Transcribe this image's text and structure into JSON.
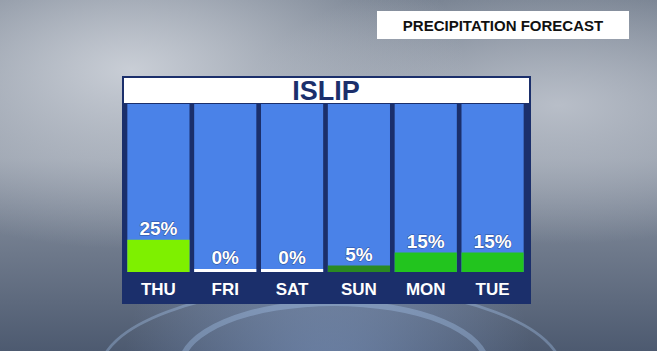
{
  "chart_data": {
    "type": "bar",
    "title": "ISLIP",
    "subtitle": "PRECIPITATION FORECAST",
    "categories": [
      "THU",
      "FRI",
      "SAT",
      "SUN",
      "MON",
      "TUE"
    ],
    "values": [
      25,
      0,
      0,
      5,
      15,
      15
    ],
    "value_labels": [
      "25%",
      "0%",
      "0%",
      "5%",
      "15%",
      "15%"
    ],
    "colors": [
      "#7ef000",
      "#ffffff",
      "#ffffff",
      "#2a8a22",
      "#22c41e",
      "#22c41e"
    ],
    "ylim": [
      0,
      130
    ],
    "tick_labels": false,
    "grid": false,
    "data_labels": true
  }
}
